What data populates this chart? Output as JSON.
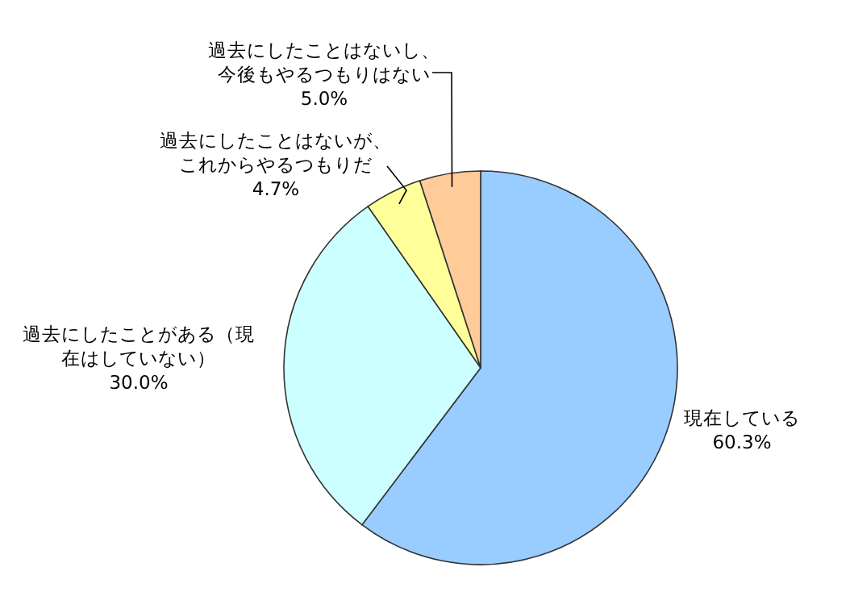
{
  "chart_data": {
    "type": "pie",
    "categories": [
      "現在している",
      "過去にしたことがある（現在はしていない）",
      "過去にしたことはないが、これからやるつもりだ",
      "過去にしたことはないし、今後もやるつもりはない"
    ],
    "values": [
      60.3,
      30.0,
      4.7,
      5.0
    ],
    "colors": [
      "#99ccff",
      "#ccffff",
      "#ffff99",
      "#ffcc99"
    ],
    "value_labels": [
      "60.3%",
      "30.0%",
      "4.7%",
      "5.0%"
    ]
  }
}
